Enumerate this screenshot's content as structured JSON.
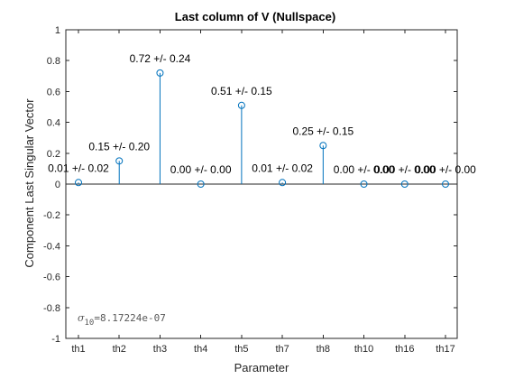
{
  "chart_data": {
    "type": "stem",
    "title": "Last column of V (Nullspace)",
    "xlabel": "Parameter",
    "ylabel": "Component Last Singular Vector",
    "categories": [
      "th1",
      "th2",
      "th3",
      "th4",
      "th5",
      "th7",
      "th8",
      "th10",
      "th16",
      "th17"
    ],
    "values": [
      0.01,
      0.15,
      0.72,
      0.0,
      0.51,
      0.01,
      0.25,
      0.0,
      0.0,
      0.0
    ],
    "data_labels": [
      "0.01 +/- 0.02",
      "0.15 +/- 0.20",
      "0.72 +/- 0.24",
      "0.00 +/- 0.00",
      "0.51 +/- 0.15",
      "0.01 +/- 0.02",
      "0.25 +/- 0.15",
      "0.00 +/- 0.00",
      "0.00 +/- 0.00",
      "0.00 +/- 0.00"
    ],
    "ylim": [
      -1,
      1
    ],
    "yticks": [
      -1,
      -0.8,
      -0.6,
      -0.4,
      -0.2,
      0,
      0.2,
      0.4,
      0.6,
      0.8,
      1
    ],
    "ytick_labels": [
      "-1",
      "-0.8",
      "-0.6",
      "-0.4",
      "-0.2",
      "0",
      "0.2",
      "0.4",
      "0.6",
      "0.8",
      "1"
    ],
    "grid": false,
    "legend": "none",
    "annotation": {
      "symbol": "σ",
      "subscript": "10",
      "text": "=8.17224e-07"
    },
    "colors": {
      "stem": "#0072BD",
      "axis": "#262626",
      "text": "#000000"
    }
  }
}
